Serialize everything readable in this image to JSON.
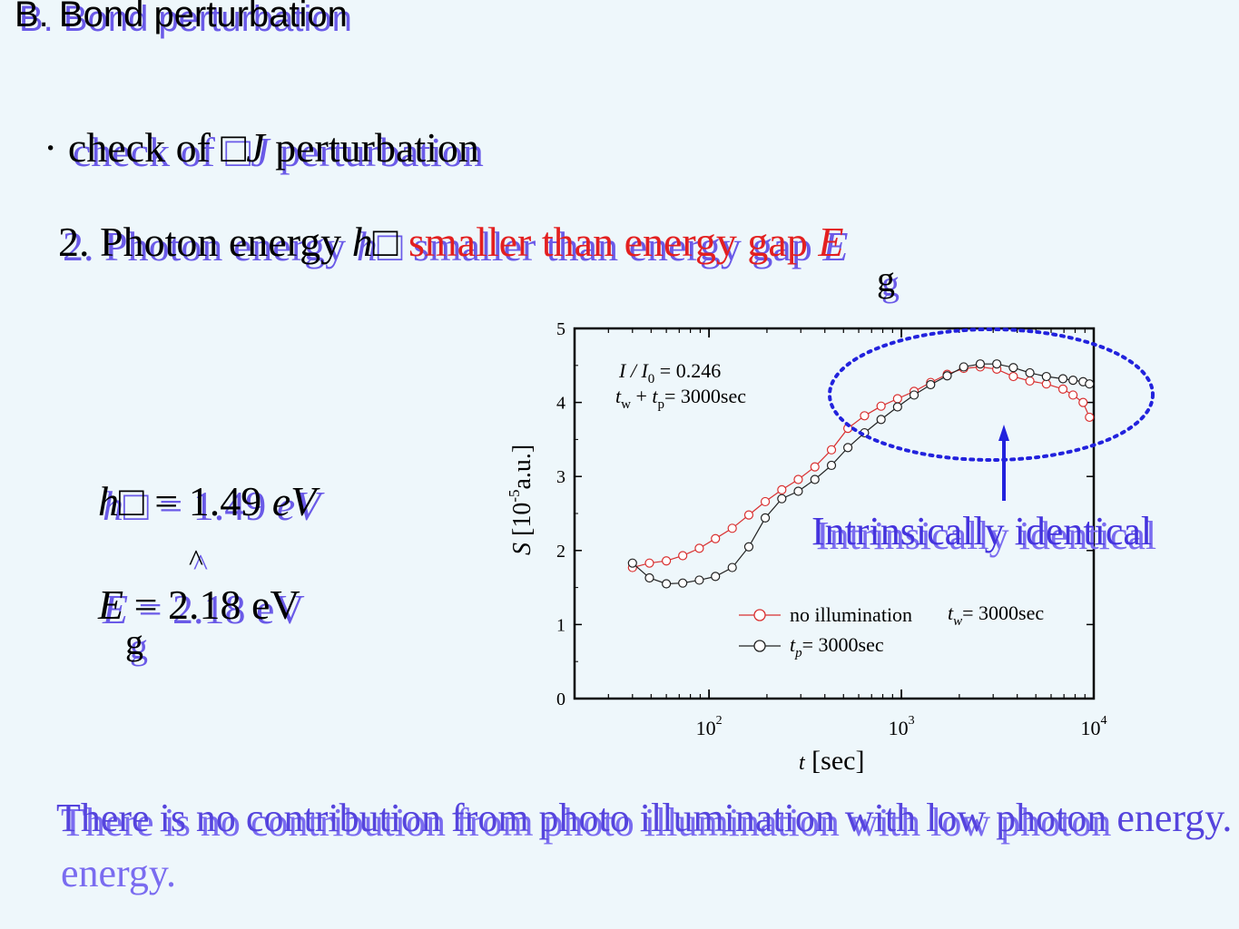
{
  "slide": {
    "title": "B. Bond perturbation",
    "bullet_mark": "·",
    "bullet_text_pre": "check of ",
    "bullet_sym1": "□",
    "bullet_sym2": "J",
    "bullet_text_post": " perturbation",
    "item2_pre": "2. Photon energy ",
    "item2_h": "h",
    "item2_sym": "□",
    "item2_red": " smaller than energy gap ",
    "item2_E": "E",
    "item2_sub": "g",
    "eq1_h": "h",
    "eq1_sym": "□",
    "eq1_rhs": " = 1.49 ",
    "eq1_unit": "eV",
    "hat": "^",
    "eq2_E": "E",
    "eq2_rhs": " = 2.18 eV",
    "eq2_sub": "g",
    "annotation": "Intrinsically  identical",
    "conclusion": "There is no contribution from photo illumination with low photon energy."
  },
  "chart_data": {
    "type": "line",
    "x_scale": "log",
    "xlim": [
      20,
      10000
    ],
    "ylim": [
      0,
      5
    ],
    "xlabel_var": "t",
    "xlabel_unit": " [sec]",
    "ylabel_var": "S",
    "ylabel_unit": " [10",
    "ylabel_exp": "-5",
    "ylabel_end": "a.u.]",
    "y_ticks": [
      "0",
      "1",
      "2",
      "3",
      "4",
      "5"
    ],
    "x_ticks": [
      {
        "value": 100,
        "base": "10",
        "exp": "2"
      },
      {
        "value": 1000,
        "base": "10",
        "exp": "3"
      },
      {
        "value": 10000,
        "base": "10",
        "exp": "4"
      }
    ],
    "annotation_line1_var": "I",
    "annotation_line1_mid": " / I",
    "annotation_line1_sub": "0",
    "annotation_line1_val": " = 0.246",
    "annotation_line2_a": "t",
    "annotation_line2_a_sub": "w",
    "annotation_line2_plus": " + ",
    "annotation_line2_b": "t",
    "annotation_line2_b_sub": "p",
    "annotation_line2_val": "= 3000sec",
    "legend": {
      "red_label": "no illumination",
      "red_cond_var": "t",
      "red_cond_sub": "w",
      "red_cond_val": "= 3000sec",
      "black_cond_var": "t",
      "black_cond_sub": "p",
      "black_cond_val": "= 3000sec"
    },
    "series": [
      {
        "name": "no illumination",
        "color": "#d93030",
        "x": [
          40,
          49,
          60,
          73,
          89,
          108,
          132,
          161,
          196,
          239,
          291,
          355,
          433,
          527,
          643,
          784,
          955,
          1164,
          1419,
          1730,
          2108,
          2570,
          3132,
          3818,
          4653,
          5672,
          6913,
          7800,
          8800,
          9500
        ],
        "y": [
          1.77,
          1.83,
          1.86,
          1.93,
          2.03,
          2.16,
          2.3,
          2.48,
          2.66,
          2.82,
          2.96,
          3.13,
          3.36,
          3.65,
          3.82,
          3.95,
          4.05,
          4.15,
          4.27,
          4.38,
          4.46,
          4.48,
          4.45,
          4.35,
          4.29,
          4.25,
          4.18,
          4.1,
          4.0,
          3.8
        ]
      },
      {
        "name": "",
        "color": "#222222",
        "x": [
          40,
          49,
          60,
          73,
          89,
          108,
          132,
          161,
          196,
          239,
          291,
          355,
          433,
          527,
          643,
          784,
          955,
          1164,
          1419,
          1730,
          2108,
          2570,
          3132,
          3818,
          4653,
          5672,
          6913,
          7800,
          8800,
          9500
        ],
        "y": [
          1.83,
          1.63,
          1.55,
          1.56,
          1.6,
          1.65,
          1.77,
          2.05,
          2.44,
          2.7,
          2.8,
          2.96,
          3.15,
          3.39,
          3.59,
          3.77,
          3.94,
          4.1,
          4.24,
          4.36,
          4.48,
          4.52,
          4.52,
          4.47,
          4.4,
          4.35,
          4.32,
          4.3,
          4.28,
          4.25
        ]
      }
    ]
  }
}
